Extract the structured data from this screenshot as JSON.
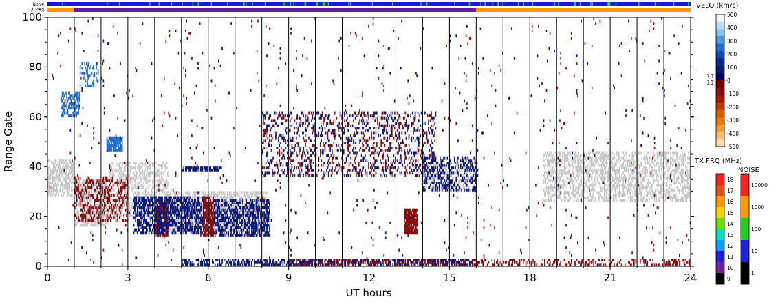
{
  "chart_data": {
    "type": "heatmap",
    "xlabel": "UT hours",
    "ylabel": "Range Gate",
    "xlim": [
      0,
      24
    ],
    "ylim": [
      0,
      100
    ],
    "x_ticks": [
      0,
      3,
      6,
      9,
      12,
      15,
      18,
      21,
      24
    ],
    "y_ticks": [
      0,
      20,
      40,
      60,
      80,
      100
    ],
    "hour_lines": [
      1,
      2,
      3,
      4,
      5,
      6,
      7,
      8,
      9,
      10,
      11,
      12,
      13,
      14,
      15,
      16,
      17,
      18,
      19,
      20,
      21,
      22,
      23
    ],
    "noise_strip": {
      "label": "Noise",
      "colors": [
        "#1a1adc",
        "#2ecc40"
      ]
    },
    "tx_freq_strip": {
      "label": "TX Freq",
      "segments": [
        {
          "from": 0,
          "to": 1,
          "color": "#ff9900"
        },
        {
          "from": 1,
          "to": 16,
          "color": "#5a1e9e"
        },
        {
          "from": 16,
          "to": 24,
          "color": "#ff9900"
        }
      ]
    },
    "regions": [
      {
        "name": "ground-scatter",
        "color": "#c8c8c8",
        "x0": 0.0,
        "x1": 1.0,
        "y0": 28,
        "y1": 43,
        "density": 0.55
      },
      {
        "name": "ground-scatter",
        "color": "#c8c8c8",
        "x0": 1.0,
        "x1": 2.3,
        "y0": 16,
        "y1": 35,
        "density": 0.6
      },
      {
        "name": "ground-scatter",
        "color": "#c8c8c8",
        "x0": 2.3,
        "x1": 4.5,
        "y0": 20,
        "y1": 42,
        "density": 0.45
      },
      {
        "name": "ground-scatter",
        "color": "#c8c8c8",
        "x0": 4.5,
        "x1": 8.2,
        "y0": 14,
        "y1": 30,
        "density": 0.55
      },
      {
        "name": "ground-scatter",
        "color": "#c8c8c8",
        "x0": 14.0,
        "x1": 16.0,
        "y0": 30,
        "y1": 42,
        "density": 0.35
      },
      {
        "name": "ground-scatter",
        "color": "#c8c8c8",
        "x0": 18.5,
        "x1": 24.0,
        "y0": 26,
        "y1": 46,
        "density": 0.45
      },
      {
        "name": "negative-velocity",
        "color": "#8b0d0d",
        "x0": 1.0,
        "x1": 3.0,
        "y0": 18,
        "y1": 36,
        "density": 0.3
      },
      {
        "name": "negative-velocity",
        "color": "#8b0d0d",
        "x0": 5.8,
        "x1": 6.2,
        "y0": 12,
        "y1": 28,
        "density": 0.8
      },
      {
        "name": "negative-velocity",
        "color": "#8b0d0d",
        "x0": 4.0,
        "x1": 4.5,
        "y0": 12,
        "y1": 26,
        "density": 0.7
      },
      {
        "name": "negative-velocity",
        "color": "#8b0d0d",
        "x0": 13.3,
        "x1": 13.8,
        "y0": 13,
        "y1": 23,
        "density": 0.85
      },
      {
        "name": "negative-velocity",
        "color": "#8b0d0d",
        "x0": 8.0,
        "x1": 14.5,
        "y0": 36,
        "y1": 62,
        "density": 0.12
      },
      {
        "name": "positive-velocity",
        "color": "#0a1a7a",
        "x0": 3.2,
        "x1": 5.8,
        "y0": 13,
        "y1": 28,
        "density": 0.55
      },
      {
        "name": "positive-velocity",
        "color": "#0a1a7a",
        "x0": 6.2,
        "x1": 8.3,
        "y0": 12,
        "y1": 27,
        "density": 0.5
      },
      {
        "name": "positive-velocity",
        "color": "#0a1a7a",
        "x0": 14.0,
        "x1": 16.0,
        "y0": 30,
        "y1": 44,
        "density": 0.35
      },
      {
        "name": "positive-velocity",
        "color": "#0a1a7a",
        "x0": 8.0,
        "x1": 14.5,
        "y0": 36,
        "y1": 62,
        "density": 0.12
      },
      {
        "name": "positive-velocity",
        "color": "#0a1a7a",
        "x0": 5.0,
        "x1": 6.5,
        "y0": 38,
        "y1": 40,
        "density": 0.7
      },
      {
        "name": "fast-positive",
        "color": "#1e6fd9",
        "x0": 0.5,
        "x1": 1.2,
        "y0": 60,
        "y1": 70,
        "density": 0.5
      },
      {
        "name": "fast-positive",
        "color": "#1e6fd9",
        "x0": 2.2,
        "x1": 2.8,
        "y0": 46,
        "y1": 52,
        "density": 0.85
      },
      {
        "name": "fast-positive",
        "color": "#1e6fd9",
        "x0": 1.2,
        "x1": 1.9,
        "y0": 72,
        "y1": 82,
        "density": 0.3
      },
      {
        "name": "near-range-positive",
        "color": "#0a1a7a",
        "x0": 5.0,
        "x1": 16.0,
        "y0": 0,
        "y1": 3,
        "density": 0.5
      },
      {
        "name": "near-range-negative",
        "color": "#8b0d0d",
        "x0": 9.0,
        "x1": 24.0,
        "y0": 0,
        "y1": 3,
        "density": 0.3
      },
      {
        "name": "scattered-negative",
        "color": "#8b0d0d",
        "x0": 0.0,
        "x1": 24.0,
        "y0": 0,
        "y1": 100,
        "density": 0.006
      },
      {
        "name": "scattered-positive",
        "color": "#0a1a7a",
        "x0": 0.0,
        "x1": 24.0,
        "y0": 0,
        "y1": 100,
        "density": 0.005
      }
    ],
    "legend": {
      "velocity": {
        "title": "VELO (km/s)",
        "ticks": [
          "500",
          "400",
          "300",
          "200",
          "100",
          "10",
          "0",
          "-10",
          "-100",
          "-200",
          "-300",
          "-400",
          "-500"
        ],
        "colors": [
          "#f0f8ff",
          "#bcdcf6",
          "#86c1f0",
          "#4a98e6",
          "#1f6fd6",
          "#1347b6",
          "#0b2a8e",
          "#0a1a6e",
          "#000060",
          "#6b0000",
          "#8b0d0d",
          "#a31b0a",
          "#c03a00",
          "#d95a00",
          "#e87a00",
          "#f59a30",
          "#fdbb70",
          "#ffdcb0"
        ]
      },
      "tx_freq": {
        "title": "TX FRQ (MHz)",
        "ticks": [
          "18",
          "17",
          "16",
          "15",
          "14",
          "13",
          "12",
          "11",
          "10",
          "9"
        ],
        "colors": [
          "#ff2020",
          "#e05018",
          "#ff9900",
          "#ffd200",
          "#6be000",
          "#00e0c0",
          "#00a0ff",
          "#2020e0",
          "#7a1ea0",
          "#000000"
        ]
      },
      "noise": {
        "title": "NOISE",
        "ticks": [
          "10000",
          "1000",
          "100",
          "10",
          "1"
        ],
        "colors": [
          "#ff2020",
          "#ff9900",
          "#20d020",
          "#2020e0",
          "#000000"
        ]
      }
    }
  }
}
